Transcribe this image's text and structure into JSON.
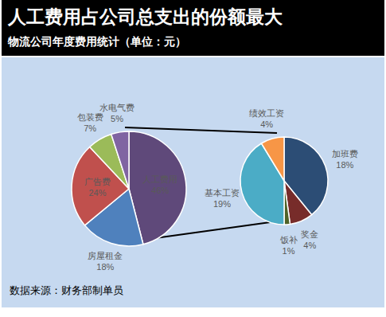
{
  "chart_data": [
    {
      "type": "pie",
      "title": "人工费用占公司总支出的份额最大",
      "subtitle": "物流公司年度费用统计（单位：元）",
      "annotations": [
        "数据来源：财务部制单员"
      ],
      "categories": [
        "人工费用",
        "房屋租金",
        "广告费",
        "包装费",
        "水电气费"
      ],
      "values": [
        46,
        18,
        24,
        7,
        5
      ],
      "value_labels": [
        "46%",
        "18%",
        "24%",
        "7%",
        "5%"
      ],
      "colors": [
        "#5f497a",
        "#4f81bd",
        "#c0504d",
        "#9bbb59",
        "#8064a2"
      ],
      "data_labels": true
    },
    {
      "type": "pie",
      "categories": [
        "加班费",
        "奖金",
        "饭补",
        "基本工资",
        "绩效工资"
      ],
      "values": [
        18,
        4,
        1,
        19,
        4
      ],
      "value_labels": [
        "18%",
        "4%",
        "1%",
        "19%",
        "4%"
      ],
      "colors": [
        "#2c4d75",
        "#772c2a",
        "#4f6228",
        "#4bacc6",
        "#f79646"
      ],
      "data_labels": true
    }
  ]
}
